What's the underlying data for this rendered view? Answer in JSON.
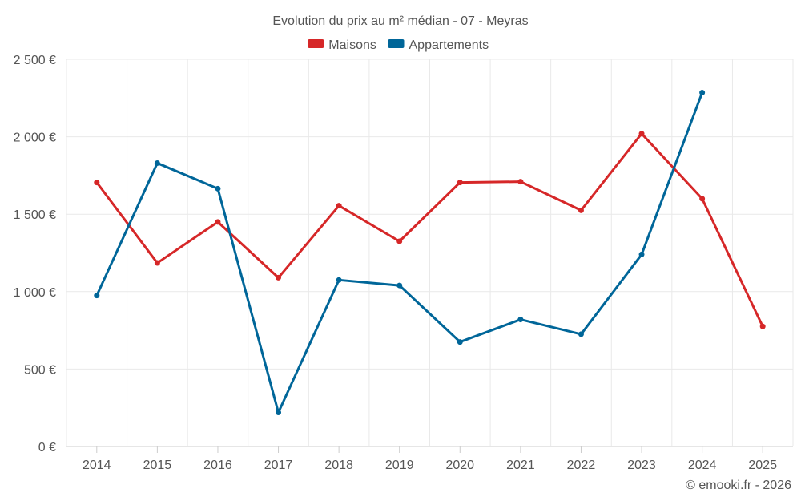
{
  "chart_data": {
    "type": "line",
    "title": "Evolution du prix au m² médian - 07 - Meyras",
    "categories": [
      "2014",
      "2015",
      "2016",
      "2017",
      "2018",
      "2019",
      "2020",
      "2021",
      "2022",
      "2023",
      "2024",
      "2025"
    ],
    "y_ticks": [
      "0 €",
      "500 €",
      "1 000 €",
      "1 500 €",
      "2 000 €",
      "2 500 €"
    ],
    "y_tick_values": [
      0,
      500,
      1000,
      1500,
      2000,
      2500
    ],
    "ylim": [
      0,
      2500
    ],
    "grid": true,
    "legend_position": "top-center",
    "series": [
      {
        "name": "Maisons",
        "color": "#d62728",
        "values": [
          1705,
          1185,
          1450,
          1090,
          1555,
          1325,
          1705,
          1710,
          1525,
          2020,
          1600,
          775
        ]
      },
      {
        "name": "Appartements",
        "color": "#006699",
        "values": [
          975,
          1830,
          1665,
          220,
          1075,
          1040,
          675,
          820,
          725,
          1240,
          2285,
          null
        ]
      }
    ],
    "credit": "© emooki.fr - 2026"
  }
}
